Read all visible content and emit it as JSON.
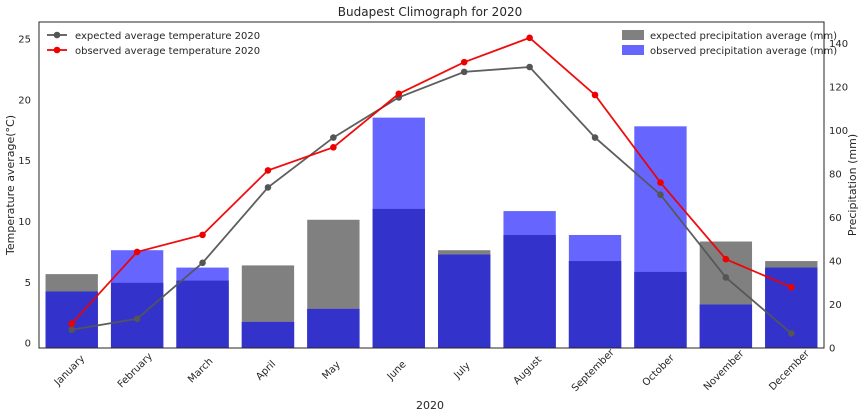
{
  "chart_data": {
    "type": "bar",
    "title": "Budapest Climograph for 2020",
    "xlabel": "2020",
    "ylabel_left": "Temperature average(°C)",
    "ylabel_right": "Precipitation (mm)",
    "ylim_left": [
      -0.4,
      26.4
    ],
    "ylim_right": [
      0,
      150
    ],
    "yticks_left": [
      0,
      5,
      10,
      15,
      20,
      25
    ],
    "yticks_right": [
      0,
      20,
      40,
      60,
      80,
      100,
      120,
      140
    ],
    "categories": [
      "January",
      "February",
      "March",
      "April",
      "May",
      "June",
      "July",
      "August",
      "September",
      "October",
      "November",
      "December"
    ],
    "bar_series": [
      {
        "name": "expected precipitation average (mm)",
        "color": "#808080",
        "values": [
          34,
          30,
          31,
          38,
          59,
          64,
          45,
          52,
          40,
          35,
          49,
          40
        ]
      },
      {
        "name": "observed precipitation average (mm)",
        "color": "#6666ff",
        "values": [
          26,
          45,
          37,
          12,
          18,
          106,
          43,
          63,
          52,
          102,
          20,
          37
        ]
      }
    ],
    "overlap_color": "#3333cc",
    "line_series": [
      {
        "name": "expected average temperature 2020",
        "color": "#555555",
        "values": [
          1.1,
          2.0,
          6.6,
          12.8,
          16.9,
          20.2,
          22.3,
          22.7,
          16.9,
          12.2,
          5.4,
          0.8
        ]
      },
      {
        "name": "observed average temperature 2020",
        "color": "#ee0000",
        "values": [
          1.6,
          7.5,
          8.9,
          14.2,
          16.1,
          20.5,
          23.1,
          25.1,
          20.4,
          13.2,
          6.9,
          4.6
        ]
      }
    ],
    "legend_left": "top-left",
    "legend_right": "top-right",
    "grid": false
  }
}
